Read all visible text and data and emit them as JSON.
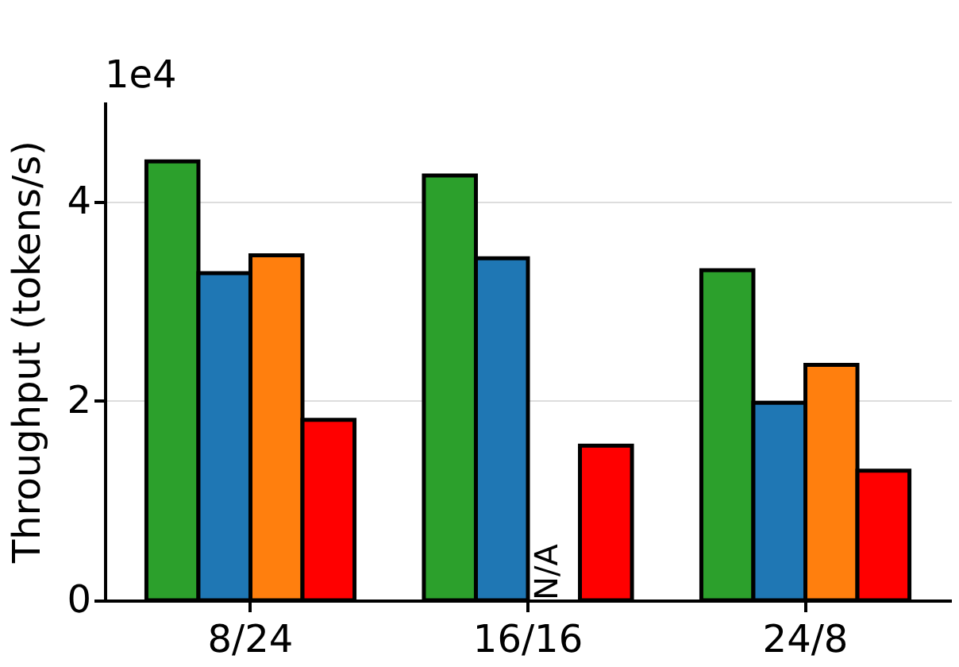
{
  "chart_data": {
    "type": "bar",
    "ylabel": "Throughput (tokens/s)",
    "categories": [
      "8/24",
      "16/16",
      "24/8"
    ],
    "series": [
      {
        "color": "#2ca02c",
        "values": [
          4.4,
          4.26,
          3.31
        ]
      },
      {
        "color": "#1f77b4",
        "values": [
          3.28,
          3.43,
          1.98
        ]
      },
      {
        "color": "#ff7f0e",
        "values": [
          3.46,
          null,
          2.36
        ]
      },
      {
        "color": "#ff0000",
        "values": [
          1.81,
          1.55,
          1.3
        ]
      }
    ],
    "ylim": [
      0,
      5
    ],
    "yticks": [
      0,
      2,
      4
    ],
    "grid": "y",
    "legend": false,
    "annotations": [
      "1e4",
      {
        "text": "N/A",
        "x": "16/16",
        "y": 0
      }
    ]
  }
}
